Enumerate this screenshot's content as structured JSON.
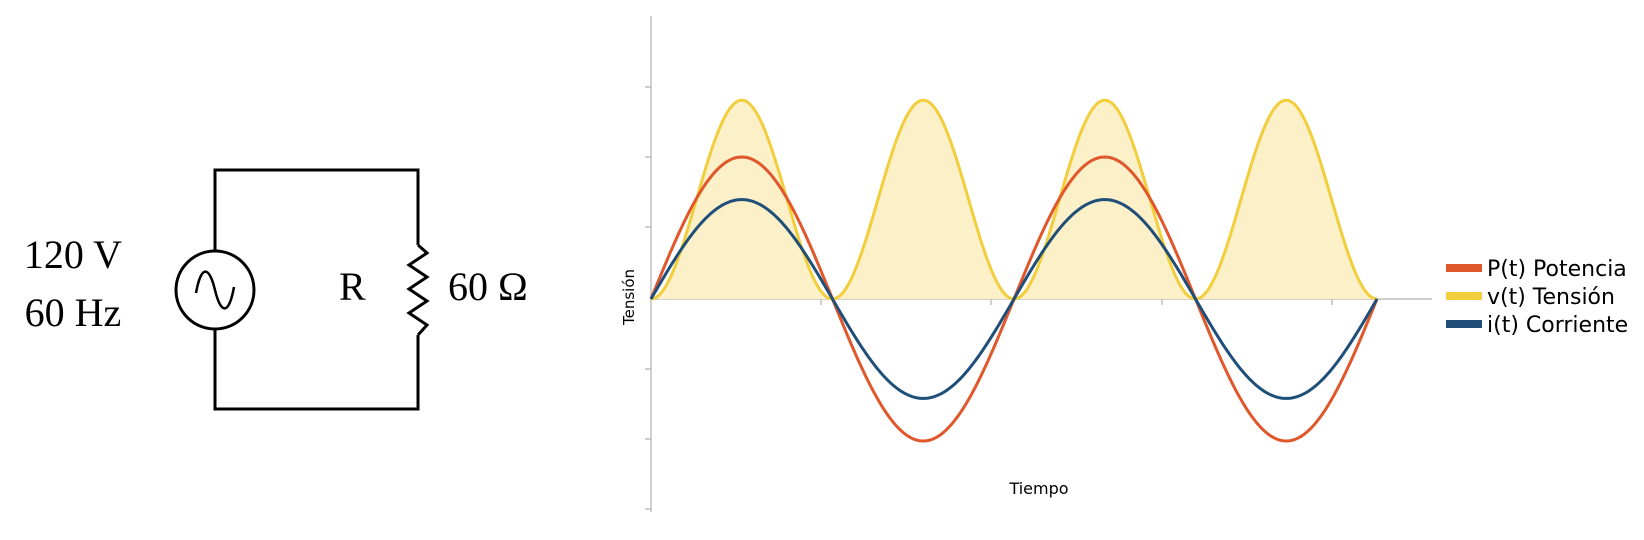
{
  "circuit": {
    "source_voltage": "120 V",
    "source_frequency": "60 Hz",
    "resistor_label": "R",
    "resistor_value": "60 Ω"
  },
  "colors": {
    "power": "#E0572B",
    "voltage": "#F2CE3C",
    "voltage_fill": "#FBF0C8",
    "current": "#1F4E79",
    "axis": "#BFBFBF"
  },
  "chart_data": {
    "type": "line",
    "xlabel": "Tiempo",
    "ylabel": "Tensión",
    "x_range_cycles": [
      0,
      2
    ],
    "ylim": [
      -1,
      1.4
    ],
    "grid": false,
    "legend_placement": "right",
    "series": [
      {
        "name": "P(t) Potencia",
        "color_key": "power",
        "amplitude": 1.0,
        "shape": "sine"
      },
      {
        "name": "v(t) Tensión",
        "color_key": "voltage",
        "amplitude": 1.4,
        "shape": "sine-squared",
        "filled": true
      },
      {
        "name": "i(t)  Corriente",
        "color_key": "current",
        "amplitude": 0.7,
        "shape": "sine"
      }
    ]
  }
}
